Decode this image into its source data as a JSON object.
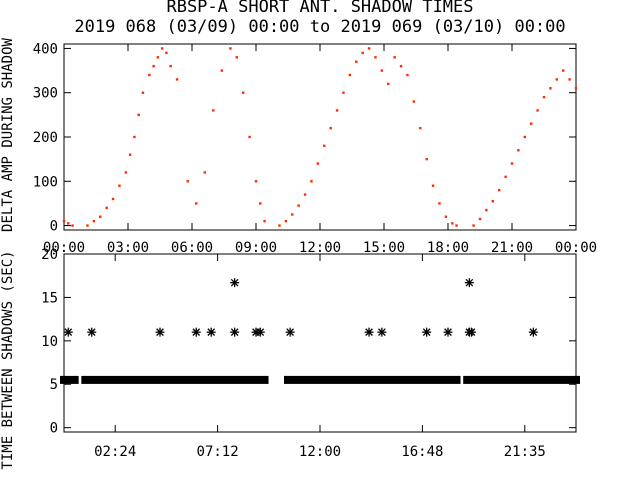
{
  "title_line1": "RBSP-A SHORT ANT. SHADOW TIMES",
  "title_line2": "2019 068 (03/09) 00:00 to 2019 069 (03/10) 00:00",
  "colors": {
    "data_red": "#ff2a00",
    "axis": "#000000",
    "background": "#ffffff"
  },
  "chart_data": [
    {
      "type": "scatter",
      "ylabel": "DELTA AMP DURING SHADOW",
      "xlim": [
        0,
        24
      ],
      "ylim": [
        -10,
        410
      ],
      "x_unit": "hours",
      "x_ticks": [
        0,
        3,
        6,
        9,
        12,
        15,
        18,
        21,
        24
      ],
      "x_tick_labels": [
        "00:00",
        "03:00",
        "06:00",
        "09:00",
        "12:00",
        "15:00",
        "18:00",
        "21:00",
        "00:00"
      ],
      "y_ticks": [
        0,
        100,
        200,
        300,
        400
      ],
      "y_tick_labels": [
        "0",
        "100",
        "200",
        "300",
        "400"
      ],
      "series": [
        {
          "color": "#ff2a00",
          "x": [
            0.0,
            0.2,
            0.4,
            1.1,
            1.4,
            1.7,
            2.0,
            2.3,
            2.6,
            2.9,
            3.1,
            3.3,
            3.5,
            3.7,
            4.0,
            4.2,
            4.4,
            4.6,
            4.8,
            5.0,
            5.3,
            5.8,
            6.2,
            6.6,
            7.0,
            7.4,
            7.8,
            8.1,
            8.4,
            8.7,
            9.0,
            9.2,
            9.4,
            10.1,
            10.4,
            10.7,
            11.0,
            11.3,
            11.6,
            11.9,
            12.2,
            12.5,
            12.8,
            13.1,
            13.4,
            13.7,
            14.0,
            14.3,
            14.6,
            14.9,
            15.2,
            15.5,
            15.8,
            16.1,
            16.4,
            16.7,
            17.0,
            17.3,
            17.6,
            17.9,
            18.2,
            18.4,
            19.2,
            19.5,
            19.8,
            20.1,
            20.4,
            20.7,
            21.0,
            21.3,
            21.6,
            21.9,
            22.2,
            22.5,
            22.8,
            23.1,
            23.4,
            23.7,
            24.0
          ],
          "y": [
            10,
            5,
            0,
            0,
            10,
            20,
            40,
            60,
            90,
            120,
            160,
            200,
            250,
            300,
            340,
            360,
            380,
            400,
            390,
            360,
            330,
            100,
            50,
            120,
            260,
            350,
            400,
            380,
            300,
            200,
            100,
            50,
            10,
            0,
            10,
            25,
            45,
            70,
            100,
            140,
            180,
            220,
            260,
            300,
            340,
            370,
            390,
            400,
            380,
            350,
            320,
            380,
            360,
            340,
            280,
            220,
            150,
            90,
            50,
            20,
            5,
            0,
            0,
            15,
            35,
            55,
            80,
            110,
            140,
            170,
            200,
            230,
            260,
            290,
            310,
            330,
            350,
            330,
            310
          ]
        }
      ]
    },
    {
      "type": "scatter",
      "ylabel": "TIME BETWEEN SHADOWS (SEC)",
      "xlim": [
        0,
        24
      ],
      "ylim": [
        -0.5,
        20
      ],
      "x_unit": "hours",
      "x_ticks": [
        2.4,
        7.2,
        12.0,
        16.8,
        21.6
      ],
      "x_tick_labels": [
        "02:24",
        "07:12",
        "12:00",
        "16:48",
        "21:35"
      ],
      "y_ticks": [
        0,
        5,
        10,
        15,
        20
      ],
      "y_tick_labels": [
        "0",
        "5",
        "10",
        "15",
        "20"
      ],
      "series": [
        {
          "marker": "asterisk",
          "color": "#000000",
          "x": [
            0.2,
            1.3,
            4.5,
            6.2,
            6.9,
            8.0,
            9.0,
            9.2,
            10.6,
            14.3,
            14.9,
            17.0,
            18.0,
            19.0,
            19.1,
            22.0,
            8.0,
            19.0
          ],
          "y": [
            11,
            11,
            11,
            11,
            11,
            11,
            11,
            11,
            11,
            11,
            11,
            11,
            11,
            11,
            11,
            11,
            16.7,
            16.7
          ]
        },
        {
          "marker": "asterisk-band",
          "color": "#000000",
          "x_start": [
            0.0,
            1.0,
            10.5,
            18.9
          ],
          "x_end": [
            0.5,
            9.4,
            18.4,
            24.0
          ],
          "y": [
            5.5,
            5.5,
            5.5,
            5.5
          ]
        }
      ]
    }
  ]
}
